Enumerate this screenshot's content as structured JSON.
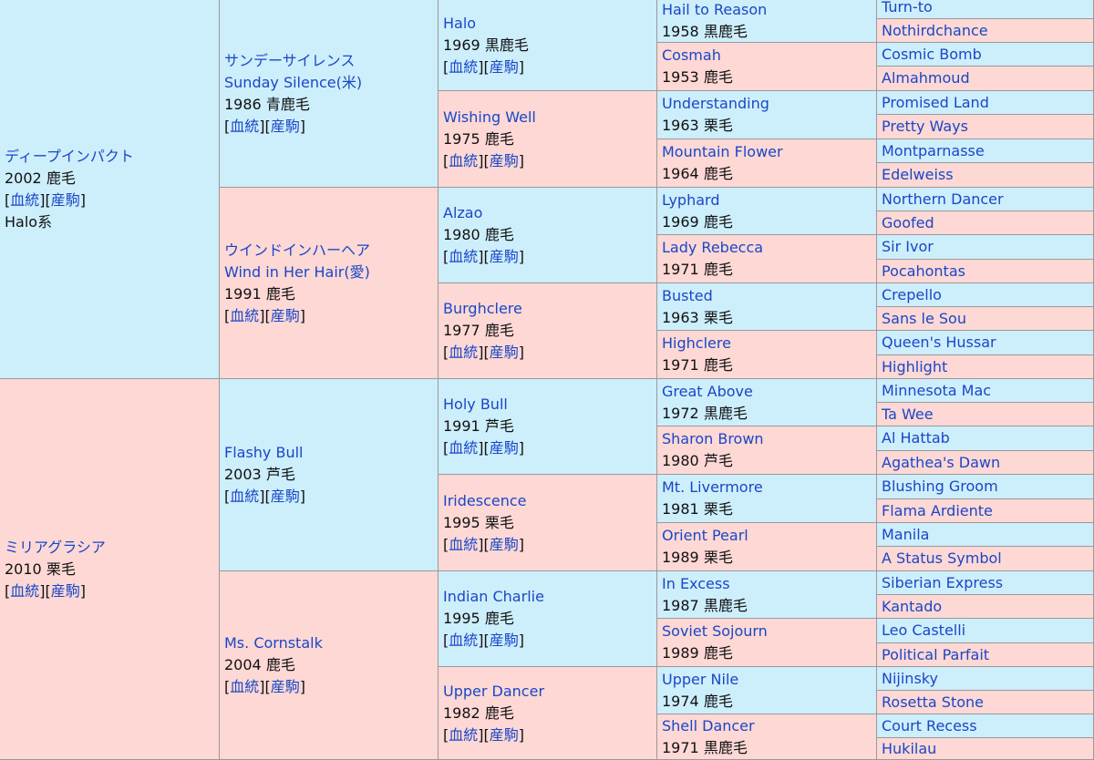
{
  "links": {
    "pedigree": "血統",
    "progeny": "産駒"
  },
  "self": {
    "name": "ディープインパクト",
    "year": "2002",
    "color": "鹿毛",
    "line": "Halo系"
  },
  "dam_main": {
    "name": "ミリアグラシア",
    "year": "2010",
    "color": "栗毛"
  },
  "g1": [
    {
      "name_ja": "サンデーサイレンス",
      "name": "Sunday Silence(米)",
      "year": "1986",
      "color": "青鹿毛"
    },
    {
      "name_ja": "ウインドインハーヘア",
      "name": "Wind in Her Hair(愛)",
      "year": "1991",
      "color": "鹿毛"
    },
    {
      "name": "Flashy Bull",
      "year": "2003",
      "color": "芦毛"
    },
    {
      "name": "Ms. Cornstalk",
      "year": "2004",
      "color": "鹿毛"
    }
  ],
  "g2": [
    {
      "name": "Halo",
      "year": "1969",
      "color": "黒鹿毛"
    },
    {
      "name": "Wishing Well",
      "year": "1975",
      "color": "鹿毛"
    },
    {
      "name": "Alzao",
      "year": "1980",
      "color": "鹿毛"
    },
    {
      "name": "Burghclere",
      "year": "1977",
      "color": "鹿毛"
    },
    {
      "name": "Holy Bull",
      "year": "1991",
      "color": "芦毛"
    },
    {
      "name": "Iridescence",
      "year": "1995",
      "color": "栗毛"
    },
    {
      "name": "Indian Charlie",
      "year": "1995",
      "color": "鹿毛"
    },
    {
      "name": "Upper Dancer",
      "year": "1982",
      "color": "鹿毛"
    }
  ],
  "g3": [
    {
      "name": "Hail to Reason",
      "year": "1958",
      "color": "黒鹿毛"
    },
    {
      "name": "Cosmah",
      "year": "1953",
      "color": "鹿毛"
    },
    {
      "name": "Understanding",
      "year": "1963",
      "color": "栗毛"
    },
    {
      "name": "Mountain Flower",
      "year": "1964",
      "color": "鹿毛"
    },
    {
      "name": "Lyphard",
      "year": "1969",
      "color": "鹿毛"
    },
    {
      "name": "Lady Rebecca",
      "year": "1971",
      "color": "鹿毛"
    },
    {
      "name": "Busted",
      "year": "1963",
      "color": "栗毛"
    },
    {
      "name": "Highclere",
      "year": "1971",
      "color": "鹿毛"
    },
    {
      "name": "Great Above",
      "year": "1972",
      "color": "黒鹿毛"
    },
    {
      "name": "Sharon Brown",
      "year": "1980",
      "color": "芦毛"
    },
    {
      "name": "Mt. Livermore",
      "year": "1981",
      "color": "栗毛"
    },
    {
      "name": "Orient Pearl",
      "year": "1989",
      "color": "栗毛"
    },
    {
      "name": "In Excess",
      "year": "1987",
      "color": "黒鹿毛"
    },
    {
      "name": "Soviet Sojourn",
      "year": "1989",
      "color": "鹿毛"
    },
    {
      "name": "Upper Nile",
      "year": "1974",
      "color": "鹿毛"
    },
    {
      "name": "Shell Dancer",
      "year": "1971",
      "color": "黒鹿毛"
    }
  ],
  "g4": [
    "Turn-to",
    "Nothirdchance",
    "Cosmic Bomb",
    "Almahmoud",
    "Promised Land",
    "Pretty Ways",
    "Montparnasse",
    "Edelweiss",
    "Northern Dancer",
    "Goofed",
    "Sir Ivor",
    "Pocahontas",
    "Crepello",
    "Sans le Sou",
    "Queen's Hussar",
    "Highlight",
    "Minnesota Mac",
    "Ta Wee",
    "Al Hattab",
    "Agathea's Dawn",
    "Blushing Groom",
    "Flama Ardiente",
    "Manila",
    "A Status Symbol",
    "Siberian Express",
    "Kantado",
    "Leo Castelli",
    "Political Parfait",
    "Nijinsky",
    "Rosetta Stone",
    "Court Recess",
    "Hukilau"
  ]
}
